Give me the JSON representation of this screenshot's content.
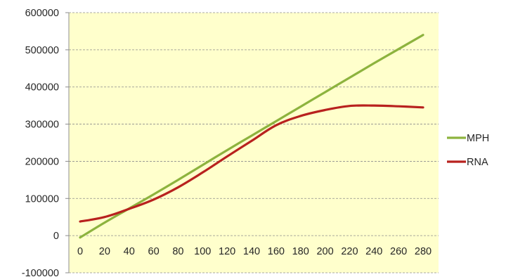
{
  "chart_data": {
    "type": "line",
    "title": "",
    "xlabel": "",
    "ylabel": "",
    "x": [
      0,
      20,
      40,
      60,
      80,
      100,
      120,
      140,
      160,
      180,
      200,
      220,
      240,
      260,
      280
    ],
    "x_tick_labels": [
      "0",
      "20",
      "40",
      "60",
      "80",
      "100",
      "120",
      "140",
      "160",
      "180",
      "200",
      "220",
      "240",
      "260",
      "280"
    ],
    "y_ticks": [
      -100000,
      0,
      100000,
      200000,
      300000,
      400000,
      500000,
      600000
    ],
    "y_tick_labels": [
      "-100000",
      "0",
      "100000",
      "200000",
      "300000",
      "400000",
      "500000",
      "600000"
    ],
    "ylim": [
      -100000,
      600000
    ],
    "xlim": [
      0,
      280
    ],
    "grid": "horizontal dashed",
    "plot_background": "#FFFFCC",
    "legend_position": "right",
    "series": [
      {
        "name": "MPH",
        "color": "#8DB33E",
        "values": [
          -5000,
          35000,
          73000,
          111000,
          150000,
          190000,
          230000,
          269000,
          308000,
          347000,
          386000,
          425000,
          464000,
          502000,
          540000
        ]
      },
      {
        "name": "RNA",
        "color": "#B8211E",
        "values": [
          38000,
          50000,
          72000,
          97000,
          130000,
          170000,
          213000,
          255000,
          297000,
          322000,
          338000,
          349000,
          350000,
          348000,
          345000
        ]
      }
    ]
  }
}
